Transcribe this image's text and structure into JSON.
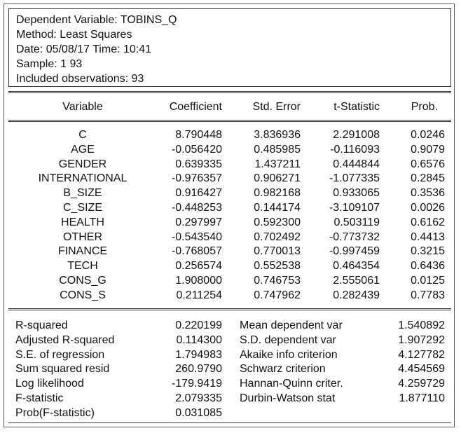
{
  "header": {
    "dependent": "Dependent Variable: TOBINS_Q",
    "method": "Method: Least Squares",
    "date": "Date: 05/08/17   Time: 10:41",
    "sample": "Sample: 1 93",
    "observations": "Included observations: 93"
  },
  "columns": [
    "Variable",
    "Coefficient",
    "Std. Error",
    "t-Statistic",
    "Prob."
  ],
  "rows": [
    [
      "C",
      "8.790448",
      "3.836936",
      "2.291008",
      "0.0246"
    ],
    [
      "AGE",
      "-0.056420",
      "0.485985",
      "-0.116093",
      "0.9079"
    ],
    [
      "GENDER",
      "0.639335",
      "1.437211",
      "0.444844",
      "0.6576"
    ],
    [
      "INTERNATIONAL",
      "-0.976357",
      "0.906271",
      "-1.077335",
      "0.2845"
    ],
    [
      "B_SIZE",
      "0.916427",
      "0.982168",
      "0.933065",
      "0.3536"
    ],
    [
      "C_SIZE",
      "-0.448253",
      "0.144174",
      "-3.109107",
      "0.0026"
    ],
    [
      "HEALTH",
      "0.297997",
      "0.592300",
      "0.503119",
      "0.6162"
    ],
    [
      "OTHER",
      "-0.543540",
      "0.702492",
      "-0.773732",
      "0.4413"
    ],
    [
      "FINANCE",
      "-0.768057",
      "0.770013",
      "-0.997459",
      "0.3215"
    ],
    [
      "TECH",
      "0.256574",
      "0.552538",
      "0.464354",
      "0.6436"
    ],
    [
      "CONS_G",
      "1.908000",
      "0.746753",
      "2.555061",
      "0.0125"
    ],
    [
      "CONS_S",
      "0.211254",
      "0.747962",
      "0.282439",
      "0.7783"
    ]
  ],
  "stats_left": [
    [
      "R-squared",
      "0.220199"
    ],
    [
      "Adjusted R-squared",
      "0.114300"
    ],
    [
      "S.E. of regression",
      "1.794983"
    ],
    [
      "Sum squared resid",
      "260.9790"
    ],
    [
      "Log likelihood",
      "-179.9419"
    ],
    [
      "F-statistic",
      "2.079335"
    ],
    [
      "Prob(F-statistic)",
      "0.031085"
    ]
  ],
  "stats_right": [
    [
      "Mean dependent var",
      "1.540892"
    ],
    [
      "S.D. dependent var",
      "1.907292"
    ],
    [
      "Akaike info criterion",
      "4.127782"
    ],
    [
      "Schwarz criterion",
      "4.454569"
    ],
    [
      "Hannan-Quinn criter.",
      "4.259729"
    ],
    [
      "Durbin-Watson stat",
      "1.877110"
    ]
  ]
}
